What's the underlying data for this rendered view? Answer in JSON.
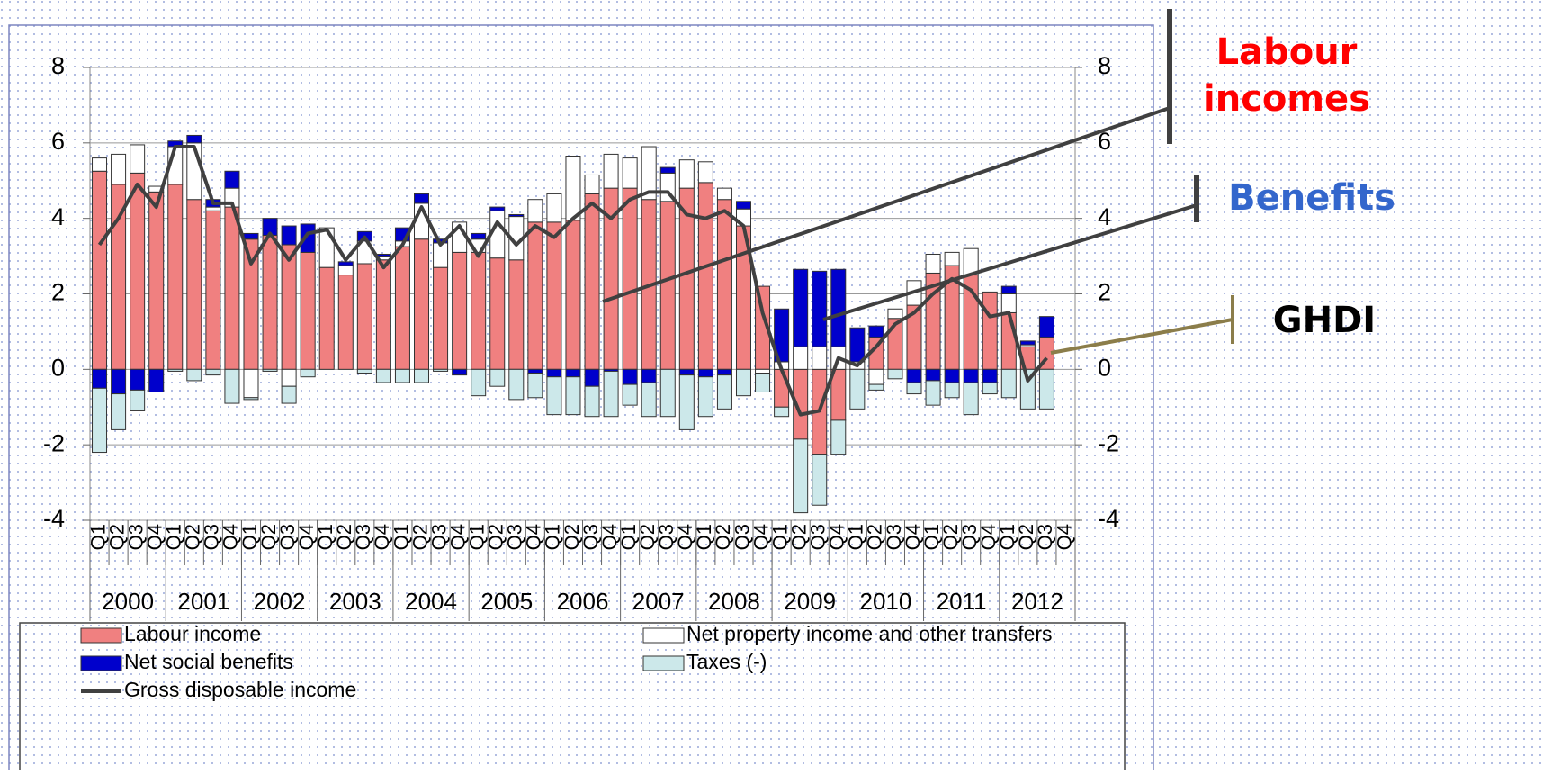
{
  "chart_data": {
    "type": "bar",
    "stacked": true,
    "categories": [
      "Q1",
      "Q2",
      "Q3",
      "Q4",
      "Q1",
      "Q2",
      "Q3",
      "Q4",
      "Q1",
      "Q2",
      "Q3",
      "Q4",
      "Q1",
      "Q2",
      "Q3",
      "Q4",
      "Q1",
      "Q2",
      "Q3",
      "Q4",
      "Q1",
      "Q2",
      "Q3",
      "Q4",
      "Q1",
      "Q2",
      "Q3",
      "Q4",
      "Q1",
      "Q2",
      "Q3",
      "Q4",
      "Q1",
      "Q2",
      "Q3",
      "Q4",
      "Q1",
      "Q2",
      "Q3",
      "Q4",
      "Q1",
      "Q2",
      "Q3",
      "Q4",
      "Q1",
      "Q2",
      "Q3",
      "Q4",
      "Q1",
      "Q2",
      "Q3",
      "Q4"
    ],
    "year_labels": [
      "2000",
      "2001",
      "2002",
      "2003",
      "2004",
      "2005",
      "2006",
      "2007",
      "2008",
      "2009",
      "2010",
      "2011",
      "2012"
    ],
    "series": [
      {
        "name": "Labour income",
        "color": "#f08080",
        "values": [
          5.25,
          4.9,
          5.2,
          4.7,
          4.9,
          4.5,
          4.2,
          4.3,
          3.45,
          3.55,
          3.3,
          3.1,
          2.7,
          2.5,
          2.8,
          2.9,
          3.25,
          3.45,
          2.7,
          3.1,
          3.1,
          2.95,
          2.9,
          3.9,
          3.9,
          3.95,
          4.65,
          4.8,
          4.8,
          4.5,
          4.45,
          4.8,
          4.95,
          4.5,
          3.8,
          2.2,
          -1.0,
          -1.85,
          -2.25,
          -1.35,
          0,
          0.85,
          1.35,
          1.7,
          2.55,
          2.75,
          2.5,
          2.05,
          1.5,
          0.6,
          0.85,
          null
        ]
      },
      {
        "name": "Net property income and other transfers",
        "color": "#ffffff",
        "values": [
          0.35,
          0.8,
          0.75,
          0.15,
          1.0,
          1.5,
          0.1,
          0.5,
          -0.75,
          0,
          -0.45,
          0,
          1.05,
          0.25,
          0.6,
          0.1,
          0.15,
          0.95,
          0.65,
          0.8,
          0.35,
          1.25,
          1.15,
          0.6,
          0.75,
          1.7,
          0.5,
          0.9,
          0.8,
          1.4,
          0.75,
          0.75,
          0.55,
          0.3,
          0.45,
          -0.1,
          0.2,
          0.6,
          0.6,
          0.6,
          0.2,
          -0.4,
          0.25,
          0.65,
          0.5,
          0.35,
          0.7,
          0,
          0.5,
          0.05,
          0,
          null
        ]
      },
      {
        "name": "Net social benefits",
        "color": "#0000cc",
        "values": [
          -0.5,
          -0.65,
          -0.55,
          -0.6,
          0.15,
          0.2,
          0.2,
          0.45,
          0.15,
          0.45,
          0.5,
          0.75,
          0,
          0.1,
          0.25,
          0.05,
          0.35,
          0.25,
          0.1,
          -0.15,
          0.15,
          0.1,
          0.05,
          -0.1,
          -0.2,
          -0.2,
          -0.45,
          -0.05,
          -0.4,
          -0.35,
          0.15,
          -0.15,
          -0.2,
          -0.15,
          0.2,
          0,
          1.4,
          2.05,
          2.0,
          2.05,
          0.9,
          0.3,
          0,
          -0.35,
          -0.3,
          -0.35,
          -0.35,
          -0.35,
          0.2,
          0.1,
          0.55,
          null
        ]
      },
      {
        "name": "Taxes (-)",
        "color": "#cce8ea",
        "values": [
          -1.7,
          -0.95,
          -0.55,
          0,
          -0.05,
          -0.3,
          -0.15,
          -0.9,
          -0.05,
          -0.05,
          -0.45,
          -0.2,
          0,
          0,
          -0.1,
          -0.35,
          -0.35,
          -0.35,
          -0.05,
          0,
          -0.7,
          -0.45,
          -0.8,
          -0.65,
          -1.0,
          -1.0,
          -0.8,
          -1.2,
          -0.55,
          -0.9,
          -1.25,
          -1.45,
          -1.05,
          -0.9,
          -0.7,
          -0.5,
          -0.25,
          -1.95,
          -1.35,
          -0.9,
          -1.05,
          -0.15,
          -0.25,
          -0.3,
          -0.65,
          -0.4,
          -0.85,
          -0.3,
          -0.75,
          -1.05,
          -1.05,
          null
        ]
      },
      {
        "name": "Gross disposable income",
        "type": "line",
        "color": "#404040",
        "values": [
          3.3,
          4.0,
          4.9,
          4.3,
          5.9,
          5.9,
          4.4,
          4.4,
          2.8,
          3.6,
          2.9,
          3.6,
          3.7,
          2.9,
          3.5,
          2.7,
          3.3,
          4.3,
          3.3,
          3.8,
          3.0,
          3.9,
          3.3,
          3.8,
          3.5,
          4.0,
          4.4,
          4.0,
          4.5,
          4.7,
          4.7,
          4.1,
          4.0,
          4.2,
          3.8,
          1.5,
          0.0,
          -1.2,
          -1.1,
          0.3,
          0.1,
          0.6,
          1.2,
          1.5,
          2.0,
          2.4,
          2.1,
          1.4,
          1.5,
          -0.3,
          0.3,
          null
        ]
      }
    ],
    "ylim": [
      -4,
      8
    ],
    "yticks": [
      -4,
      -2,
      0,
      2,
      4,
      6,
      8
    ],
    "y2lim": [
      -4,
      8
    ],
    "y2ticks": [
      -4,
      -2,
      0,
      2,
      4,
      6,
      8
    ],
    "grid": true,
    "legend": "bottom",
    "annotations": [
      {
        "lines": [
          "Labour",
          "incomes"
        ],
        "color": "#ff0000"
      },
      {
        "lines": [
          "Benefits"
        ],
        "color": "#3366cc"
      },
      {
        "lines": [
          "GHDI"
        ],
        "color": "#000000"
      }
    ]
  }
}
